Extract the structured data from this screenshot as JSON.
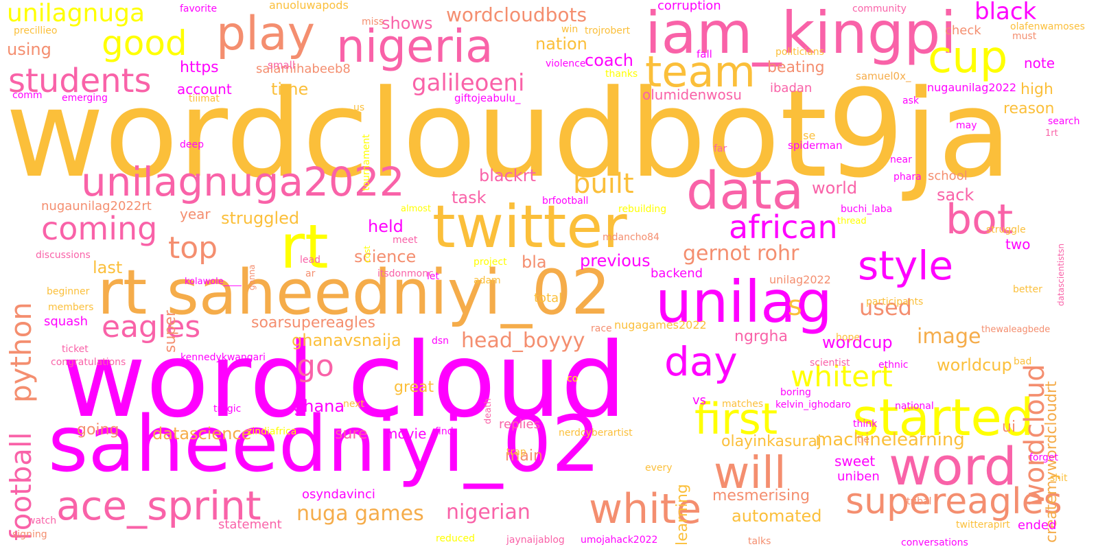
{
  "background": "#ffffff",
  "colors": {
    "magenta": "#ff00ff",
    "pink": "#f962a8",
    "salmon": "#f48e6f",
    "orange": "#f5ac4a",
    "gold": "#fbbf3a",
    "yellow": "#ffff00"
  },
  "words": [
    {
      "text": "wordcloudbot9ja",
      "color": "gold"
    },
    {
      "text": "word cloud",
      "color": "magenta"
    },
    {
      "text": "saheedniyi_02",
      "color": "magenta"
    },
    {
      "text": "rt saheedniyi_02",
      "color": "orange"
    },
    {
      "text": "iam_kingpi",
      "color": "pink"
    },
    {
      "text": "unilag",
      "color": "magenta"
    },
    {
      "text": "twitter",
      "color": "gold"
    },
    {
      "text": "data",
      "color": "pink"
    },
    {
      "text": "rt",
      "color": "yellow"
    },
    {
      "text": "nigeria",
      "color": "pink"
    },
    {
      "text": "play",
      "color": "salmon"
    },
    {
      "text": "started",
      "color": "yellow"
    },
    {
      "text": "first",
      "color": "yellow"
    },
    {
      "text": "word",
      "color": "pink"
    },
    {
      "text": "will",
      "color": "salmon"
    },
    {
      "text": "white",
      "color": "salmon"
    },
    {
      "text": "ace_sprint",
      "color": "pink"
    },
    {
      "text": "unilagnuga2022",
      "color": "pink"
    },
    {
      "text": "team",
      "color": "gold"
    },
    {
      "text": "cup",
      "color": "yellow"
    },
    {
      "text": "bot",
      "color": "pink"
    },
    {
      "text": "style",
      "color": "magenta"
    },
    {
      "text": "day",
      "color": "magenta"
    },
    {
      "text": "supereagles",
      "color": "salmon"
    },
    {
      "text": "students",
      "color": "pink"
    },
    {
      "text": "good",
      "color": "yellow"
    },
    {
      "text": "coming",
      "color": "pink"
    },
    {
      "text": "top",
      "color": "salmon"
    },
    {
      "text": "eagles",
      "color": "pink"
    },
    {
      "text": "go",
      "color": "pink"
    },
    {
      "text": "built",
      "color": "gold"
    },
    {
      "text": "african",
      "color": "magenta"
    },
    {
      "text": "galileoeni",
      "color": "pink"
    },
    {
      "text": "whitert",
      "color": "yellow"
    },
    {
      "text": "unilagnuga",
      "color": "yellow"
    },
    {
      "text": "wordcloudbots",
      "color": "salmon"
    },
    {
      "text": "black",
      "color": "magenta"
    },
    {
      "text": "head_boyyy",
      "color": "salmon"
    },
    {
      "text": "nuga games",
      "color": "orange"
    },
    {
      "text": "nigerian",
      "color": "pink"
    },
    {
      "text": "s",
      "color": "gold"
    },
    {
      "text": "used",
      "color": "salmon"
    },
    {
      "text": "image",
      "color": "orange"
    },
    {
      "text": "gernot rohr",
      "color": "salmon"
    },
    {
      "text": "football",
      "color": "pink"
    },
    {
      "text": "python",
      "color": "salmon"
    },
    {
      "text": "wordcloud",
      "color": "salmon"
    },
    {
      "text": "createmywordcloudrt",
      "color": "orange"
    },
    {
      "text": "learning",
      "color": "gold"
    },
    {
      "text": "super",
      "color": "salmon"
    },
    {
      "text": "datascience",
      "color": "orange"
    },
    {
      "text": "machinelearning",
      "color": "gold"
    },
    {
      "text": "automated",
      "color": "gold"
    },
    {
      "text": "worldcup",
      "color": "gold"
    },
    {
      "text": "wordcup",
      "color": "magenta"
    },
    {
      "text": "ghanavsnaija",
      "color": "gold"
    },
    {
      "text": "soarsupereagles",
      "color": "salmon"
    },
    {
      "text": "ngrgha",
      "color": "pink"
    },
    {
      "text": "struggled",
      "color": "gold"
    },
    {
      "text": "science",
      "color": "salmon"
    },
    {
      "text": "task",
      "color": "pink"
    },
    {
      "text": "blackrt",
      "color": "pink"
    },
    {
      "text": "world",
      "color": "pink"
    },
    {
      "text": "sack",
      "color": "pink"
    },
    {
      "text": "previous",
      "color": "magenta"
    },
    {
      "text": "bla",
      "color": "salmon"
    },
    {
      "text": "held",
      "color": "magenta"
    },
    {
      "text": "last",
      "color": "gold"
    },
    {
      "text": "year",
      "color": "salmon"
    },
    {
      "text": "coach",
      "color": "magenta"
    },
    {
      "text": "nation",
      "color": "gold"
    },
    {
      "text": "shows",
      "color": "pink"
    },
    {
      "text": "anuoluwapods",
      "color": "gold"
    },
    {
      "text": "time",
      "color": "gold"
    },
    {
      "text": "https",
      "color": "magenta"
    },
    {
      "text": "account",
      "color": "magenta"
    },
    {
      "text": "using",
      "color": "salmon"
    },
    {
      "text": "beating",
      "color": "salmon"
    },
    {
      "text": "ibadan",
      "color": "pink"
    },
    {
      "text": "olumidenwosu",
      "color": "pink"
    },
    {
      "text": "note",
      "color": "magenta"
    },
    {
      "text": "high",
      "color": "gold"
    },
    {
      "text": "reason",
      "color": "gold"
    },
    {
      "text": "nugaunilag2022",
      "color": "magenta"
    },
    {
      "text": "check",
      "color": "salmon"
    },
    {
      "text": "corruption",
      "color": "magenta"
    },
    {
      "text": "two",
      "color": "magenta"
    },
    {
      "text": "school",
      "color": "salmon"
    },
    {
      "text": "ghana",
      "color": "magenta"
    },
    {
      "text": "going",
      "color": "salmon"
    },
    {
      "text": "sure",
      "color": "pink"
    },
    {
      "text": "movie",
      "color": "magenta"
    },
    {
      "text": "main",
      "color": "salmon"
    },
    {
      "text": "replies",
      "color": "pink"
    },
    {
      "text": "great",
      "color": "gold"
    },
    {
      "text": "olayinkasuraj",
      "color": "gold"
    },
    {
      "text": "sweet",
      "color": "magenta"
    },
    {
      "text": "uniben",
      "color": "magenta"
    },
    {
      "text": "mesmerising",
      "color": "salmon"
    },
    {
      "text": "osyndavinci",
      "color": "magenta"
    },
    {
      "text": "ui",
      "color": "salmon"
    },
    {
      "text": "vs",
      "color": "magenta"
    },
    {
      "text": "ended",
      "color": "magenta"
    },
    {
      "text": "statement",
      "color": "pink"
    },
    {
      "text": "squash",
      "color": "magenta"
    },
    {
      "text": "backend",
      "color": "magenta"
    },
    {
      "text": "total",
      "color": "gold"
    },
    {
      "text": "nugagames2022",
      "color": "gold"
    },
    {
      "text": "salamihabeeb8",
      "color": "salmon"
    },
    {
      "text": "unilag2022",
      "color": "salmon"
    },
    {
      "text": "nugaunilag2022rt",
      "color": "salmon"
    },
    {
      "text": "use",
      "color": "gold"
    },
    {
      "text": "spiderman",
      "color": "magenta"
    },
    {
      "text": "giftojeabulu_",
      "color": "magenta"
    },
    {
      "text": "favorite",
      "color": "magenta"
    },
    {
      "text": "precillieo",
      "color": "gold"
    },
    {
      "text": "miss",
      "color": "salmon"
    },
    {
      "text": "win",
      "color": "gold"
    },
    {
      "text": "trojrobert",
      "color": "gold"
    },
    {
      "text": "community",
      "color": "pink"
    },
    {
      "text": "olafenwamoses",
      "color": "gold"
    },
    {
      "text": "must",
      "color": "salmon"
    },
    {
      "text": "small",
      "color": "pink"
    },
    {
      "text": "fall",
      "color": "magenta"
    },
    {
      "text": "politicians",
      "color": "gold"
    },
    {
      "text": "samuel0x_",
      "color": "orange"
    },
    {
      "text": "violence",
      "color": "magenta"
    },
    {
      "text": "thanks",
      "color": "yellow"
    },
    {
      "text": "comm",
      "color": "magenta"
    },
    {
      "text": "emerging",
      "color": "magenta"
    },
    {
      "text": "tiiimat",
      "color": "gold"
    },
    {
      "text": "us",
      "color": "gold"
    },
    {
      "text": "tournament",
      "color": "yellow"
    },
    {
      "text": "ask",
      "color": "magenta"
    },
    {
      "text": "may",
      "color": "magenta"
    },
    {
      "text": "search",
      "color": "magenta"
    },
    {
      "text": "1rt",
      "color": "pink"
    },
    {
      "text": "deep",
      "color": "magenta"
    },
    {
      "text": "far",
      "color": "pink"
    },
    {
      "text": "near",
      "color": "magenta"
    },
    {
      "text": "phara",
      "color": "magenta"
    },
    {
      "text": "datascientistsn",
      "color": "pink"
    },
    {
      "text": "almost",
      "color": "yellow"
    },
    {
      "text": "brfootball",
      "color": "magenta"
    },
    {
      "text": "rebuilding",
      "color": "yellow"
    },
    {
      "text": "buchi_laba",
      "color": "magenta"
    },
    {
      "text": "thread",
      "color": "yellow"
    },
    {
      "text": "struggle",
      "color": "gold"
    },
    {
      "text": "discussions",
      "color": "pink"
    },
    {
      "text": "cost",
      "color": "yellow"
    },
    {
      "text": "gonna",
      "color": "salmon"
    },
    {
      "text": "meet",
      "color": "pink"
    },
    {
      "text": "mdancho84",
      "color": "salmon"
    },
    {
      "text": "lead",
      "color": "pink"
    },
    {
      "text": "project",
      "color": "yellow"
    },
    {
      "text": "let",
      "color": "magenta"
    },
    {
      "text": "adam",
      "color": "gold"
    },
    {
      "text": "itsdonmonc",
      "color": "pink"
    },
    {
      "text": "ar",
      "color": "salmon"
    },
    {
      "text": "beginner",
      "color": "gold"
    },
    {
      "text": "kolawole____",
      "color": "magenta"
    },
    {
      "text": "better",
      "color": "gold"
    },
    {
      "text": "members",
      "color": "gold"
    },
    {
      "text": "participants",
      "color": "gold"
    },
    {
      "text": "race",
      "color": "salmon"
    },
    {
      "text": "hope",
      "color": "gold"
    },
    {
      "text": "thewaleagbede",
      "color": "salmon"
    },
    {
      "text": "dsn",
      "color": "magenta"
    },
    {
      "text": "ticket",
      "color": "pink"
    },
    {
      "text": "congratulations",
      "color": "pink"
    },
    {
      "text": "kennedykwangari",
      "color": "magenta"
    },
    {
      "text": "scientist",
      "color": "pink"
    },
    {
      "text": "ethnic",
      "color": "magenta"
    },
    {
      "text": "bad",
      "color": "gold"
    },
    {
      "text": "co",
      "color": "yellow"
    },
    {
      "text": "death",
      "color": "pink"
    },
    {
      "text": "boring",
      "color": "magenta"
    },
    {
      "text": "tragic",
      "color": "magenta"
    },
    {
      "text": "next",
      "color": "gold"
    },
    {
      "text": "matches",
      "color": "gold"
    },
    {
      "text": "kelvin_ighodaro",
      "color": "magenta"
    },
    {
      "text": "national",
      "color": "magenta"
    },
    {
      "text": "zindiafrica",
      "color": "yellow"
    },
    {
      "text": "find",
      "color": "magenta"
    },
    {
      "text": "nerdcyberartist",
      "color": "gold"
    },
    {
      "text": "think",
      "color": "magenta"
    },
    {
      "text": "tie",
      "color": "salmon"
    },
    {
      "text": "trap",
      "color": "gold"
    },
    {
      "text": "forget",
      "color": "magenta"
    },
    {
      "text": "every",
      "color": "gold"
    },
    {
      "text": "shit",
      "color": "gold"
    },
    {
      "text": "tribal",
      "color": "salmon"
    },
    {
      "text": "watch",
      "color": "pink"
    },
    {
      "text": "signing",
      "color": "salmon"
    },
    {
      "text": "reduced",
      "color": "yellow"
    },
    {
      "text": "jaynaijablog",
      "color": "pink"
    },
    {
      "text": "umojahack2022",
      "color": "magenta"
    },
    {
      "text": "twitterapirt",
      "color": "gold"
    },
    {
      "text": "talks",
      "color": "salmon"
    },
    {
      "text": "conversations",
      "color": "magenta"
    }
  ]
}
